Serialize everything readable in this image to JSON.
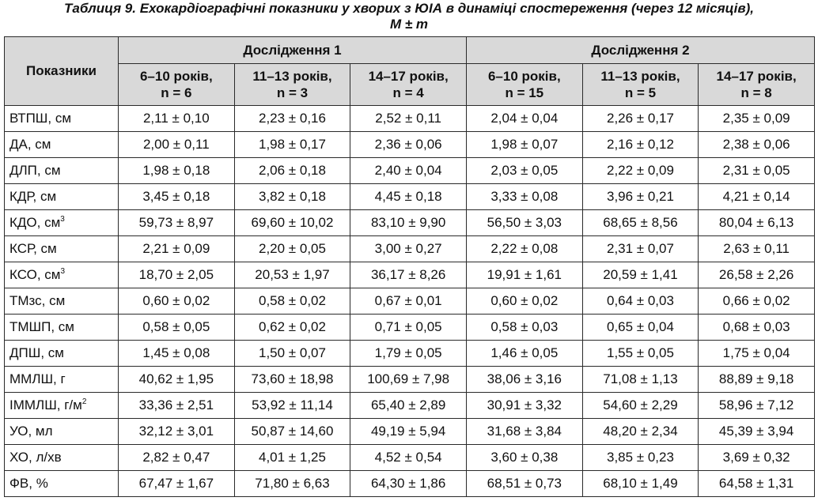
{
  "caption": {
    "line1": "Таблиця 9. Ехокардіографічні показники у хворих з ЮІА в динаміці спостереження (через 12 місяців),",
    "line2": "M ± m"
  },
  "header": {
    "row_header": "Показники",
    "groups": [
      "Дослідження 1",
      "Дослідження 2"
    ],
    "columns": [
      {
        "age": "6–10 років,",
        "n": "n = 6"
      },
      {
        "age": "11–13 років,",
        "n": "n = 3"
      },
      {
        "age": "14–17 років,",
        "n": "n = 4"
      },
      {
        "age": "6–10 років,",
        "n": "n = 15"
      },
      {
        "age": "11–13 років,",
        "n": "n = 5"
      },
      {
        "age": "14–17 років,",
        "n": "n = 8"
      }
    ]
  },
  "rows": [
    {
      "label": "ВТПШ, см",
      "sup": "",
      "values": [
        "2,11 ± 0,10",
        "2,23 ± 0,16",
        "2,52 ± 0,11",
        "2,04 ± 0,04",
        "2,26 ± 0,17",
        "2,35 ± 0,09"
      ]
    },
    {
      "label": "ДА, см",
      "sup": "",
      "values": [
        "2,00 ± 0,11",
        "1,98 ± 0,17",
        "2,36 ± 0,06",
        "1,98 ± 0,07",
        "2,16 ± 0,12",
        "2,38 ± 0,06"
      ]
    },
    {
      "label": "ДЛП, см",
      "sup": "",
      "values": [
        "1,98 ± 0,18",
        "2,06 ± 0,18",
        "2,40 ± 0,04",
        "2,03 ± 0,05",
        "2,22 ± 0,09",
        "2,31 ± 0,05"
      ]
    },
    {
      "label": "КДР, см",
      "sup": "",
      "values": [
        "3,45 ± 0,18",
        "3,82 ± 0,18",
        "4,45 ± 0,18",
        "3,33 ± 0,08",
        "3,96 ± 0,21",
        "4,21 ± 0,14"
      ]
    },
    {
      "label": "КДО, см",
      "sup": "3",
      "values": [
        "59,73 ± 8,97",
        "69,60 ± 10,02",
        "83,10 ± 9,90",
        "56,50 ± 3,03",
        "68,65 ± 8,56",
        "80,04 ± 6,13"
      ]
    },
    {
      "label": "КСР, см",
      "sup": "",
      "values": [
        "2,21 ± 0,09",
        "2,20 ± 0,05",
        "3,00 ± 0,27",
        "2,22 ± 0,08",
        "2,31 ± 0,07",
        "2,63 ± 0,11"
      ]
    },
    {
      "label": "КСО, см",
      "sup": "3",
      "values": [
        "18,70 ± 2,05",
        "20,53 ± 1,97",
        "36,17 ± 8,26",
        "19,91 ± 1,61",
        "20,59 ± 1,41",
        "26,58 ± 2,26"
      ]
    },
    {
      "label": "ТМзс, см",
      "sup": "",
      "values": [
        "0,60 ± 0,02",
        "0,58 ± 0,02",
        "0,67 ± 0,01",
        "0,60 ± 0,02",
        "0,64 ± 0,03",
        "0,66 ± 0,02"
      ]
    },
    {
      "label": "ТМШП, см",
      "sup": "",
      "values": [
        "0,58 ± 0,05",
        "0,62 ± 0,02",
        "0,71 ± 0,05",
        "0,58 ± 0,03",
        "0,65 ± 0,04",
        "0,68 ± 0,03"
      ]
    },
    {
      "label": "ДПШ, см",
      "sup": "",
      "values": [
        "1,45 ± 0,08",
        "1,50 ± 0,07",
        "1,79 ± 0,05",
        "1,46 ± 0,05",
        "1,55 ± 0,05",
        "1,75 ± 0,04"
      ]
    },
    {
      "label": "ММЛШ, г",
      "sup": "",
      "values": [
        "40,62 ± 1,95",
        "73,60 ± 18,98",
        "100,69 ± 7,98",
        "38,06 ± 3,16",
        "71,08 ± 1,13",
        "88,89 ± 9,18"
      ]
    },
    {
      "label": "ІММЛШ, г/м",
      "sup": "2",
      "values": [
        "33,36 ± 2,51",
        "53,92 ± 11,14",
        "65,40 ± 2,89",
        "30,91 ± 3,32",
        "54,60 ± 2,29",
        "58,96 ± 7,12"
      ]
    },
    {
      "label": "УО, мл",
      "sup": "",
      "values": [
        "32,12 ± 3,01",
        "50,87 ± 14,60",
        "49,19 ± 5,94",
        "31,68 ± 3,84",
        "48,20 ± 2,34",
        "45,39 ± 3,94"
      ]
    },
    {
      "label": "ХО, л/хв",
      "sup": "",
      "values": [
        "2,82 ± 0,47",
        "4,01 ± 1,25",
        "4,52 ± 0,54",
        "3,60 ± 0,38",
        "3,85 ± 0,23",
        "3,69 ± 0,32"
      ]
    },
    {
      "label": "ФВ, %",
      "sup": "",
      "values": [
        "67,47 ± 1,67",
        "71,80 ± 6,63",
        "64,30 ± 1,86",
        "68,51 ± 0,73",
        "68,10 ± 1,49",
        "64,58 ± 1,31"
      ]
    }
  ],
  "colors": {
    "header_bg": "#d9d9d9",
    "border": "#2a2a2a"
  }
}
